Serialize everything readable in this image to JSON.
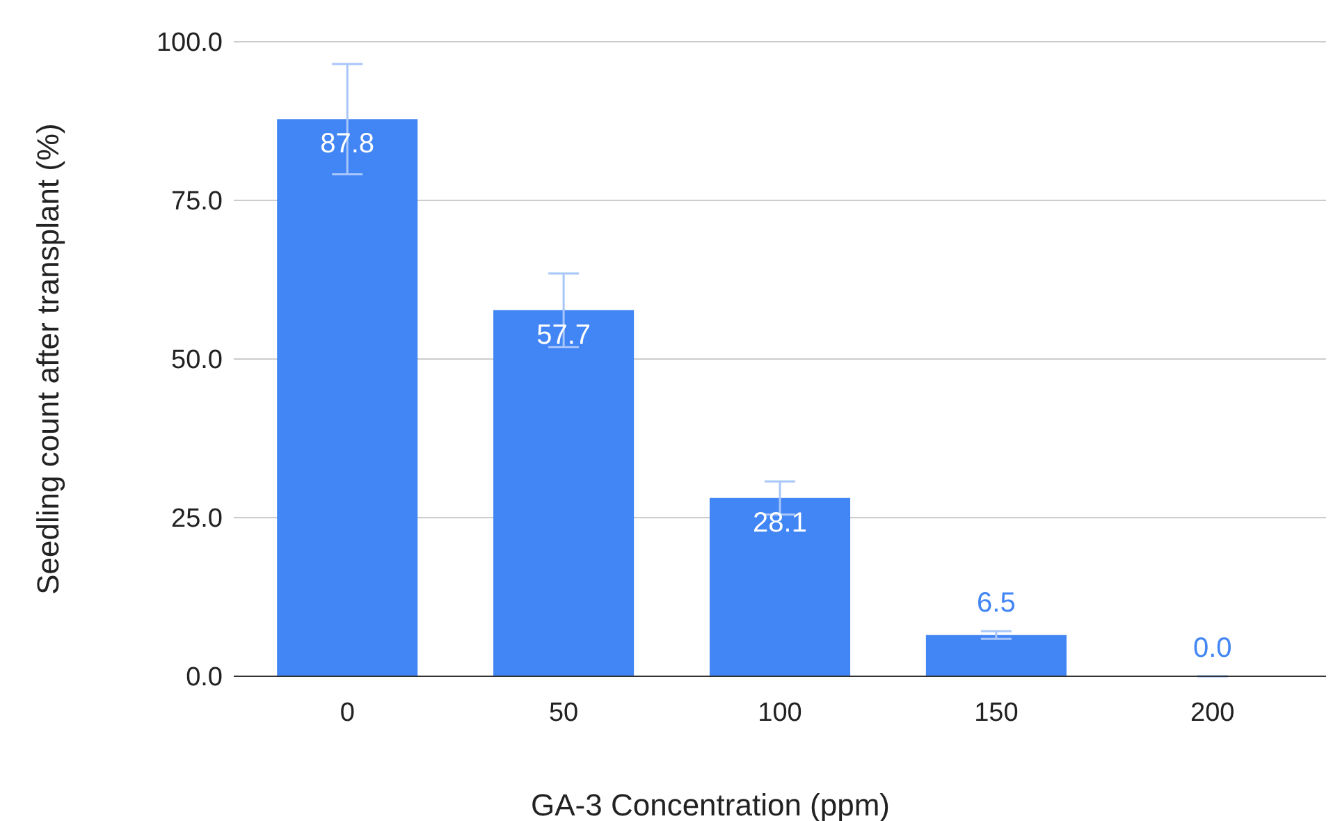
{
  "chart_data": {
    "type": "bar",
    "xlabel": "GA-3 Concentration (ppm)",
    "ylabel": "Seedling count after transplant (%)",
    "categories": [
      "0",
      "50",
      "100",
      "150",
      "200"
    ],
    "values": [
      87.8,
      57.7,
      28.1,
      6.5,
      0.0
    ],
    "errors": [
      8.7,
      5.8,
      2.6,
      0.6,
      0
    ],
    "value_labels": [
      "87.8",
      "57.7",
      "28.1",
      "6.5",
      "0.0"
    ],
    "color": "#4285f4",
    "ylim": [
      0,
      100
    ],
    "yticks": [
      {
        "value": 0,
        "label": "0.0"
      },
      {
        "value": 25,
        "label": "25.0"
      },
      {
        "value": 50,
        "label": "50.0"
      },
      {
        "value": 75,
        "label": "75.0"
      },
      {
        "value": 100,
        "label": "100.0"
      }
    ],
    "grid": "y"
  }
}
